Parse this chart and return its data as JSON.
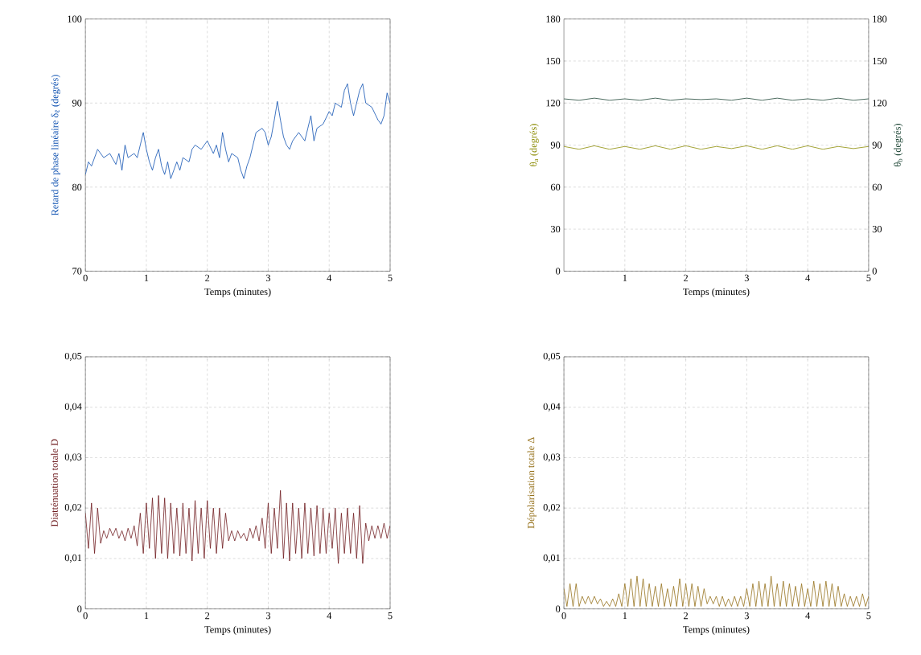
{
  "chart_data": [
    {
      "type": "line",
      "xlabel": "Temps (minutes)",
      "ylabel": "Retard de phase linéaire δ$_{ℓ}$ (degrés)",
      "xlim": [
        0,
        5
      ],
      "ylim": [
        70,
        100
      ],
      "xticks": [
        0,
        1,
        2,
        3,
        4,
        5
      ],
      "yticks": [
        70,
        80,
        90,
        100
      ],
      "grid": true,
      "legend": false,
      "x": [
        0,
        0.05,
        0.1,
        0.2,
        0.3,
        0.4,
        0.5,
        0.55,
        0.6,
        0.65,
        0.7,
        0.8,
        0.85,
        0.9,
        0.95,
        1.0,
        1.05,
        1.1,
        1.15,
        1.2,
        1.25,
        1.3,
        1.35,
        1.4,
        1.45,
        1.5,
        1.55,
        1.6,
        1.7,
        1.75,
        1.8,
        1.9,
        2.0,
        2.1,
        2.15,
        2.2,
        2.25,
        2.3,
        2.35,
        2.4,
        2.5,
        2.55,
        2.6,
        2.65,
        2.7,
        2.8,
        2.9,
        2.95,
        3.0,
        3.05,
        3.1,
        3.15,
        3.2,
        3.25,
        3.3,
        3.35,
        3.4,
        3.5,
        3.6,
        3.65,
        3.7,
        3.75,
        3.8,
        3.9,
        4.0,
        4.05,
        4.1,
        4.2,
        4.25,
        4.3,
        4.35,
        4.4,
        4.5,
        4.55,
        4.6,
        4.7,
        4.8,
        4.85,
        4.9,
        4.95,
        5
      ],
      "series": [
        {
          "color": "#0b4fb0",
          "values": [
            81.5,
            83,
            82.5,
            84.5,
            83.5,
            84,
            82.7,
            84,
            82,
            85,
            83.5,
            84,
            83.5,
            85,
            86.5,
            84.5,
            83,
            82,
            83.5,
            84.5,
            82.5,
            81.5,
            83,
            81,
            82,
            83,
            82,
            83.5,
            83,
            84.5,
            85,
            84.5,
            85.5,
            84,
            85,
            83.5,
            86.5,
            84.5,
            83,
            84,
            83.5,
            82,
            81,
            82.5,
            83.5,
            86.5,
            87,
            86.5,
            85,
            86,
            88,
            90.2,
            88,
            86,
            85,
            84.5,
            85.5,
            86.5,
            85.5,
            87,
            88.5,
            85.5,
            87,
            87.5,
            89,
            88.5,
            90,
            89.5,
            91.5,
            92.3,
            90,
            88.5,
            91.5,
            92.3,
            90,
            89.5,
            88,
            87.5,
            88.5,
            91.2,
            90
          ]
        }
      ]
    },
    {
      "type": "line",
      "xlabel": "Temps (minutes)",
      "ylabel": "θ$_{a}$ (degrés)",
      "y2label": "θ$_{b}$ (degrés)",
      "xlim": [
        0,
        5
      ],
      "ylim": [
        0,
        180
      ],
      "y2lim": [
        0,
        180
      ],
      "xticks": [
        1,
        2,
        3,
        4,
        5
      ],
      "yticks": [
        0,
        30,
        60,
        90,
        120,
        150,
        180
      ],
      "y2ticks": [
        0,
        30,
        60,
        90,
        120,
        150,
        180
      ],
      "grid": true,
      "legend": false,
      "x": [
        0,
        0.25,
        0.5,
        0.75,
        1,
        1.25,
        1.5,
        1.75,
        2,
        2.25,
        2.5,
        2.75,
        3,
        3.25,
        3.5,
        3.75,
        4,
        4.25,
        4.5,
        4.75,
        5
      ],
      "series": [
        {
          "color": "#8a8a00",
          "values": [
            89,
            87,
            89.5,
            87,
            89,
            87,
            89.5,
            87,
            89.5,
            87,
            89,
            87.5,
            89.5,
            87,
            89.5,
            87,
            89.5,
            87,
            89,
            87.5,
            89
          ]
        },
        {
          "color": "#1e4636",
          "axis": "y2",
          "values": [
            123,
            122,
            123.5,
            122,
            123,
            122,
            123.5,
            122,
            123,
            122.5,
            123,
            122,
            123.5,
            122,
            123.5,
            122,
            123,
            122,
            123.5,
            122,
            123
          ]
        }
      ]
    },
    {
      "type": "line",
      "xlabel": "Temps (minutes)",
      "ylabel": "Diatténuation totale D",
      "xlim": [
        0,
        5
      ],
      "ylim": [
        0,
        0.05
      ],
      "xticks": [
        0,
        1,
        2,
        3,
        4,
        5
      ],
      "yticks": [
        0,
        {
          "value": 0.01,
          "label": "0,01"
        },
        {
          "value": 0.02,
          "label": "0,02"
        },
        {
          "value": 0.03,
          "label": "0,03"
        },
        {
          "value": 0.04,
          "label": "0,04"
        },
        {
          "value": 0.05,
          "label": "0,05"
        }
      ],
      "grid": true,
      "legend": false,
      "x": [
        0,
        0.05,
        0.1,
        0.15,
        0.2,
        0.25,
        0.3,
        0.35,
        0.4,
        0.45,
        0.5,
        0.55,
        0.6,
        0.65,
        0.7,
        0.75,
        0.8,
        0.85,
        0.9,
        0.95,
        1,
        1.05,
        1.1,
        1.15,
        1.2,
        1.25,
        1.3,
        1.35,
        1.4,
        1.45,
        1.5,
        1.55,
        1.6,
        1.65,
        1.7,
        1.75,
        1.8,
        1.85,
        1.9,
        1.95,
        2,
        2.05,
        2.1,
        2.15,
        2.2,
        2.25,
        2.3,
        2.35,
        2.4,
        2.45,
        2.5,
        2.55,
        2.6,
        2.65,
        2.7,
        2.75,
        2.8,
        2.85,
        2.9,
        2.95,
        3,
        3.05,
        3.1,
        3.15,
        3.2,
        3.25,
        3.3,
        3.35,
        3.4,
        3.45,
        3.5,
        3.55,
        3.6,
        3.65,
        3.7,
        3.75,
        3.8,
        3.85,
        3.9,
        3.95,
        4,
        4.05,
        4.1,
        4.15,
        4.2,
        4.25,
        4.3,
        4.35,
        4.4,
        4.45,
        4.5,
        4.55,
        4.6,
        4.65,
        4.7,
        4.75,
        4.8,
        4.85,
        4.9,
        4.95,
        5
      ],
      "series": [
        {
          "color": "#6e1b1e",
          "values": [
            0.019,
            0.012,
            0.021,
            0.011,
            0.02,
            0.013,
            0.0155,
            0.014,
            0.016,
            0.0145,
            0.016,
            0.014,
            0.0155,
            0.0135,
            0.016,
            0.014,
            0.0165,
            0.0125,
            0.019,
            0.011,
            0.021,
            0.012,
            0.022,
            0.01,
            0.0225,
            0.011,
            0.022,
            0.01,
            0.021,
            0.011,
            0.02,
            0.0105,
            0.021,
            0.011,
            0.02,
            0.0095,
            0.0215,
            0.011,
            0.02,
            0.01,
            0.0215,
            0.012,
            0.02,
            0.011,
            0.02,
            0.012,
            0.019,
            0.0135,
            0.0155,
            0.0135,
            0.0155,
            0.014,
            0.015,
            0.0135,
            0.016,
            0.014,
            0.0165,
            0.0135,
            0.018,
            0.012,
            0.021,
            0.011,
            0.02,
            0.012,
            0.0235,
            0.01,
            0.021,
            0.0095,
            0.021,
            0.011,
            0.02,
            0.01,
            0.021,
            0.011,
            0.02,
            0.0105,
            0.0205,
            0.011,
            0.02,
            0.011,
            0.019,
            0.012,
            0.02,
            0.009,
            0.019,
            0.011,
            0.02,
            0.011,
            0.019,
            0.01,
            0.0205,
            0.009,
            0.017,
            0.0135,
            0.0165,
            0.014,
            0.0165,
            0.014,
            0.017,
            0.014,
            0.0165
          ]
        }
      ]
    },
    {
      "type": "line",
      "xlabel": "Temps (minutes)",
      "ylabel": "Dépolarisation totale Δ",
      "xlim": [
        0,
        5
      ],
      "ylim": [
        0,
        0.05
      ],
      "xticks": [
        0,
        1,
        2,
        3,
        4,
        5
      ],
      "yticks": [
        0,
        {
          "value": 0.01,
          "label": "0,01"
        },
        {
          "value": 0.02,
          "label": "0,02"
        },
        {
          "value": 0.03,
          "label": "0,03"
        },
        {
          "value": 0.04,
          "label": "0,04"
        },
        {
          "value": 0.05,
          "label": "0,05"
        }
      ],
      "grid": true,
      "legend": false,
      "x": [
        0,
        0.05,
        0.1,
        0.15,
        0.2,
        0.25,
        0.3,
        0.35,
        0.4,
        0.45,
        0.5,
        0.55,
        0.6,
        0.65,
        0.7,
        0.75,
        0.8,
        0.85,
        0.9,
        0.95,
        1,
        1.05,
        1.1,
        1.15,
        1.2,
        1.25,
        1.3,
        1.35,
        1.4,
        1.45,
        1.5,
        1.55,
        1.6,
        1.65,
        1.7,
        1.75,
        1.8,
        1.85,
        1.9,
        1.95,
        2,
        2.05,
        2.1,
        2.15,
        2.2,
        2.25,
        2.3,
        2.35,
        2.4,
        2.45,
        2.5,
        2.55,
        2.6,
        2.65,
        2.7,
        2.75,
        2.8,
        2.85,
        2.9,
        2.95,
        3,
        3.05,
        3.1,
        3.15,
        3.2,
        3.25,
        3.3,
        3.35,
        3.4,
        3.45,
        3.5,
        3.55,
        3.6,
        3.65,
        3.7,
        3.75,
        3.8,
        3.85,
        3.9,
        3.95,
        4,
        4.05,
        4.1,
        4.15,
        4.2,
        4.25,
        4.3,
        4.35,
        4.4,
        4.45,
        4.5,
        4.55,
        4.6,
        4.65,
        4.7,
        4.75,
        4.8,
        4.85,
        4.9,
        4.95,
        5
      ],
      "series": [
        {
          "color": "#957019",
          "values": [
            0.004,
            0.0005,
            0.005,
            0.0005,
            0.005,
            0.0005,
            0.0025,
            0.001,
            0.0025,
            0.001,
            0.0025,
            0.001,
            0.002,
            0.0005,
            0.0015,
            0.0005,
            0.002,
            0.0005,
            0.003,
            0.0005,
            0.005,
            0.0005,
            0.006,
            0.0005,
            0.0065,
            0.0005,
            0.006,
            0.0005,
            0.005,
            0.0005,
            0.0045,
            0.0005,
            0.005,
            0.0005,
            0.004,
            0.0005,
            0.0045,
            0.0005,
            0.006,
            0.0005,
            0.005,
            0.0005,
            0.005,
            0.0005,
            0.0045,
            0.0005,
            0.004,
            0.001,
            0.0025,
            0.001,
            0.0025,
            0.0005,
            0.0025,
            0.0005,
            0.002,
            0.0005,
            0.0025,
            0.0005,
            0.0025,
            0.0005,
            0.004,
            0.0005,
            0.005,
            0.0005,
            0.0055,
            0.0005,
            0.005,
            0.0005,
            0.0065,
            0.0005,
            0.005,
            0.0005,
            0.0055,
            0.0005,
            0.005,
            0.0005,
            0.0045,
            0.0005,
            0.005,
            0.0005,
            0.004,
            0.0005,
            0.0055,
            0.0005,
            0.005,
            0.0005,
            0.0055,
            0.0005,
            0.005,
            0.0005,
            0.0045,
            0.0005,
            0.003,
            0.0005,
            0.0025,
            0.0005,
            0.0025,
            0.0005,
            0.003,
            0.0005,
            0.0025
          ]
        }
      ]
    }
  ]
}
